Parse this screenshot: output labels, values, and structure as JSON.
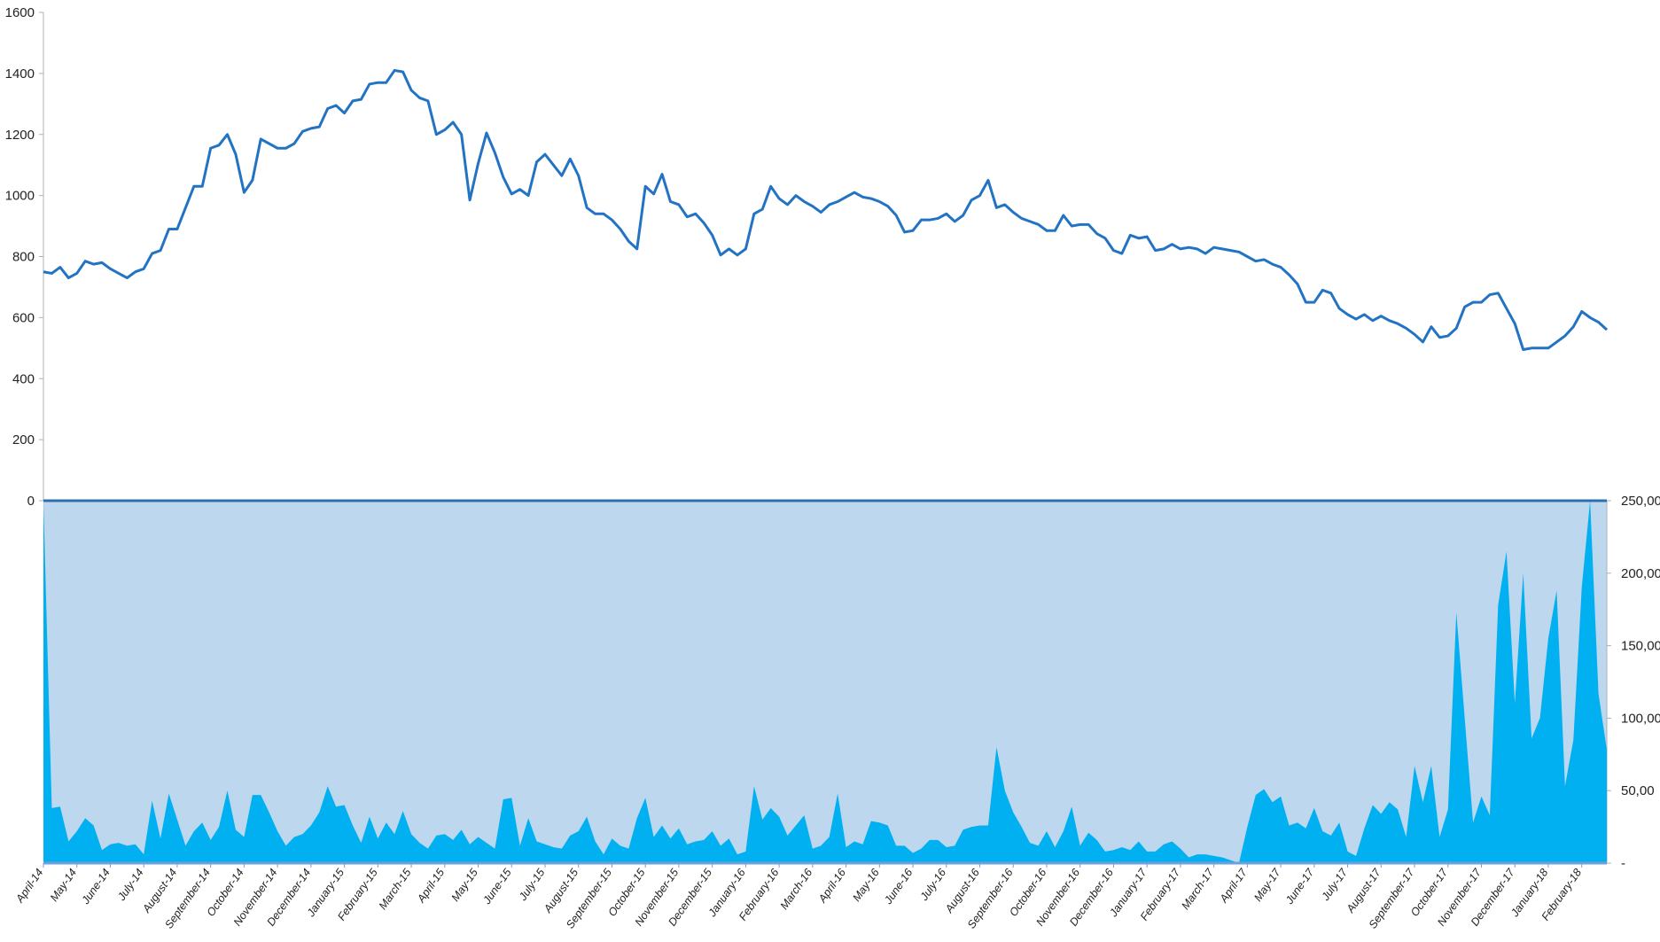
{
  "chart_data": {
    "type": "line",
    "categories": [
      "April-14",
      null,
      null,
      null,
      "May-14",
      null,
      null,
      null,
      "June-14",
      null,
      null,
      null,
      "July-14",
      null,
      null,
      null,
      "August-14",
      null,
      null,
      null,
      "September-14",
      null,
      null,
      null,
      "October-14",
      null,
      null,
      null,
      "November-14",
      null,
      null,
      null,
      "December-14",
      null,
      null,
      null,
      "January-15",
      null,
      null,
      null,
      "February-15",
      null,
      null,
      null,
      "March-15",
      null,
      null,
      null,
      "April-15",
      null,
      null,
      null,
      "May-15",
      null,
      null,
      null,
      "June-15",
      null,
      null,
      null,
      "July-15",
      null,
      null,
      null,
      "August-15",
      null,
      null,
      null,
      "September-15",
      null,
      null,
      null,
      "October-15",
      null,
      null,
      null,
      "November-15",
      null,
      null,
      null,
      "December-15",
      null,
      null,
      null,
      "January-16",
      null,
      null,
      null,
      "February-16",
      null,
      null,
      null,
      "March-16",
      null,
      null,
      null,
      "April-16",
      null,
      null,
      null,
      "May-16",
      null,
      null,
      null,
      "June-16",
      null,
      null,
      null,
      "July-16",
      null,
      null,
      null,
      "August-16",
      null,
      null,
      null,
      "September-16",
      null,
      null,
      null,
      "October-16",
      null,
      null,
      null,
      "November-16",
      null,
      null,
      null,
      "December-16",
      null,
      null,
      null,
      "January-17",
      null,
      null,
      null,
      "February-17",
      null,
      null,
      null,
      "March-17",
      null,
      null,
      null,
      "April-17",
      null,
      null,
      null,
      "May-17",
      null,
      null,
      null,
      "June-17",
      null,
      null,
      null,
      "July-17",
      null,
      null,
      null,
      "August-17",
      null,
      null,
      null,
      "September-17",
      null,
      null,
      null,
      "October-17",
      null,
      null,
      null,
      "November-17",
      null,
      null,
      null,
      "December-17",
      null,
      null,
      null,
      "January-18",
      null,
      null,
      null,
      "February-18",
      null,
      null,
      null
    ],
    "series": [
      {
        "type": "line",
        "color": "#2273c3",
        "values": [
          750,
          745,
          765,
          730,
          745,
          785,
          775,
          780,
          760,
          745,
          730,
          750,
          760,
          810,
          820,
          890,
          890,
          960,
          1030,
          1030,
          1155,
          1165,
          1200,
          1135,
          1010,
          1050,
          1185,
          1170,
          1155,
          1155,
          1170,
          1210,
          1220,
          1225,
          1285,
          1295,
          1270,
          1310,
          1315,
          1365,
          1370,
          1370,
          1410,
          1405,
          1345,
          1320,
          1310,
          1200,
          1215,
          1240,
          1200,
          985,
          1105,
          1205,
          1140,
          1060,
          1005,
          1020,
          1000,
          1110,
          1135,
          1100,
          1065,
          1120,
          1065,
          960,
          940,
          940,
          920,
          890,
          850,
          825,
          1030,
          1005,
          1070,
          980,
          970,
          930,
          940,
          910,
          870,
          805,
          825,
          805,
          825,
          940,
          955,
          1030,
          990,
          970,
          1000,
          980,
          965,
          945,
          970,
          980,
          995,
          1010,
          995,
          990,
          980,
          965,
          935,
          880,
          885,
          920,
          920,
          925,
          940,
          915,
          935,
          985,
          1000,
          1050,
          960,
          970,
          945,
          925,
          915,
          905,
          885,
          885,
          935,
          900,
          905,
          905,
          875,
          860,
          820,
          810,
          870,
          860,
          865,
          820,
          825,
          840,
          825,
          830,
          825,
          810,
          830,
          825,
          820,
          815,
          800,
          785,
          790,
          775,
          765,
          740,
          710,
          650,
          650,
          690,
          680,
          630,
          610,
          595,
          610,
          590,
          605,
          590,
          580,
          565,
          545,
          520,
          570,
          535,
          540,
          565,
          635,
          650,
          650,
          675,
          680,
          630,
          580,
          495,
          500,
          500,
          500,
          520,
          540,
          570,
          620,
          600,
          585,
          560
        ]
      },
      {
        "type": "area",
        "axis": "y2",
        "color": "#00b0f0",
        "values": [
          250,
          38,
          39,
          15,
          22,
          31,
          26,
          9,
          13,
          14,
          12,
          13,
          6,
          43,
          17,
          48,
          30,
          12,
          22,
          28,
          16,
          25,
          50,
          23,
          18,
          47,
          47,
          35,
          22,
          12,
          18,
          20,
          26,
          35,
          53,
          39,
          40,
          26,
          14,
          32,
          17,
          28,
          20,
          36,
          20,
          14,
          10,
          19,
          20,
          16,
          23,
          13,
          18,
          14,
          10,
          44,
          45,
          12,
          31,
          15,
          13,
          11,
          10,
          19,
          22,
          32,
          15,
          6,
          17,
          12,
          10,
          31,
          45,
          18,
          26,
          17,
          24,
          13,
          15,
          16,
          22,
          12,
          17,
          6,
          8,
          53,
          30,
          38,
          32,
          19,
          26,
          33,
          10,
          12,
          18,
          48,
          11,
          15,
          13,
          29,
          28,
          26,
          12,
          12,
          7,
          10,
          16,
          16,
          11,
          12,
          23,
          25,
          26,
          26,
          80,
          50,
          35,
          25,
          14,
          12,
          22,
          11,
          22,
          39,
          12,
          21,
          16,
          8,
          9,
          11,
          9,
          15,
          8,
          8,
          13,
          15,
          10,
          4,
          6,
          6,
          5,
          4,
          2,
          0,
          25,
          47,
          51,
          42,
          46,
          26,
          28,
          24,
          38,
          22,
          19,
          28,
          8,
          5,
          24,
          40,
          34,
          42,
          37,
          18,
          67,
          42,
          67,
          18,
          37,
          173,
          100,
          28,
          46,
          33,
          178,
          215,
          110,
          200,
          86,
          100,
          155,
          188,
          53,
          85,
          190,
          250,
          117,
          78
        ]
      }
    ],
    "ylim": [
      0,
      1600
    ],
    "yticks": [
      0,
      200,
      400,
      600,
      800,
      1000,
      1200,
      1400,
      1600
    ],
    "y2lim": [
      0,
      250
    ],
    "y2ticks": [
      {
        "value": 0,
        "label": "-"
      },
      {
        "value": 50,
        "label": "50,00"
      },
      {
        "value": 100,
        "label": "100,00"
      },
      {
        "value": 150,
        "label": "150,00"
      },
      {
        "value": 200,
        "label": "200,00"
      },
      {
        "value": 250,
        "label": "250,00"
      }
    ],
    "y2_panel_color": "#bdd7ee"
  }
}
